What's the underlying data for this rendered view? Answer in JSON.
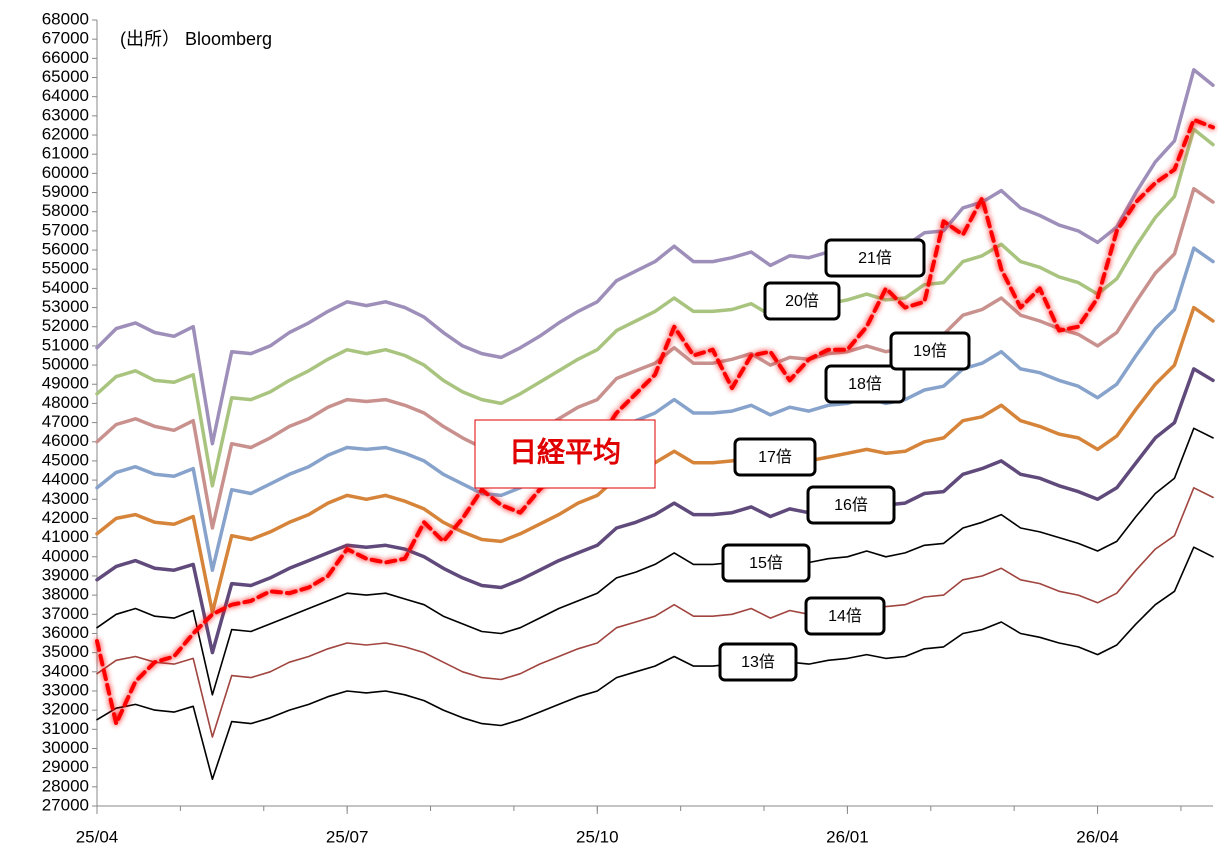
{
  "chart_data": {
    "type": "line",
    "source": "(出所） Bloomberg",
    "categories": [
      "25/04",
      null,
      null,
      null,
      null,
      null,
      null,
      null,
      null,
      null,
      null,
      null,
      null,
      "25/07",
      null,
      null,
      null,
      null,
      null,
      null,
      null,
      null,
      null,
      null,
      null,
      null,
      "25/10",
      null,
      null,
      null,
      null,
      null,
      null,
      null,
      null,
      null,
      null,
      null,
      null,
      "26/01",
      null,
      null,
      null,
      null,
      null,
      null,
      null,
      null,
      null,
      null,
      null,
      null,
      "26/04",
      null,
      null,
      null,
      null,
      null,
      null
    ],
    "ylim": [
      27000,
      68000
    ],
    "yticks": [
      27000,
      28000,
      29000,
      30000,
      31000,
      32000,
      33000,
      34000,
      35000,
      36000,
      37000,
      38000,
      39000,
      40000,
      41000,
      42000,
      43000,
      44000,
      45000,
      46000,
      47000,
      48000,
      49000,
      50000,
      51000,
      52000,
      53000,
      54000,
      55000,
      56000,
      57000,
      58000,
      59000,
      60000,
      61000,
      62000,
      63000,
      64000,
      65000,
      66000,
      67000,
      68000
    ],
    "series": [
      {
        "name": "13倍",
        "color": "#000000",
        "values": [
          31500,
          32100,
          32300,
          32000,
          31900,
          32200,
          28400,
          31400,
          31300,
          31600,
          32000,
          32300,
          32700,
          33000,
          32900,
          33000,
          32800,
          32500,
          32000,
          31600,
          31300,
          31200,
          31500,
          31900,
          32300,
          32700,
          33000,
          33700,
          34000,
          34300,
          34800,
          34300,
          34300,
          34400,
          34600,
          34200,
          34500,
          34400,
          34600,
          34700,
          34900,
          34700,
          34800,
          35200,
          35300,
          36000,
          36200,
          36600,
          36000,
          35800,
          35500,
          35300,
          34900,
          35400,
          36500,
          37500,
          38200,
          40500,
          40000
        ]
      },
      {
        "name": "14倍",
        "color": "#a0453f",
        "values": [
          33900,
          34600,
          34800,
          34500,
          34400,
          34700,
          30600,
          33800,
          33700,
          34000,
          34500,
          34800,
          35200,
          35500,
          35400,
          35500,
          35300,
          35000,
          34500,
          34000,
          33700,
          33600,
          33900,
          34400,
          34800,
          35200,
          35500,
          36300,
          36600,
          36900,
          37500,
          36900,
          36900,
          37000,
          37300,
          36800,
          37200,
          37000,
          37300,
          37400,
          37600,
          37400,
          37500,
          37900,
          38000,
          38800,
          39000,
          39400,
          38800,
          38600,
          38200,
          38000,
          37600,
          38100,
          39300,
          40400,
          41100,
          43600,
          43100
        ]
      },
      {
        "name": "15倍",
        "color": "#000000",
        "values": [
          36300,
          37000,
          37300,
          36900,
          36800,
          37200,
          32800,
          36200,
          36100,
          36500,
          36900,
          37300,
          37700,
          38100,
          38000,
          38100,
          37800,
          37500,
          36900,
          36500,
          36100,
          36000,
          36300,
          36800,
          37300,
          37700,
          38100,
          38900,
          39200,
          39600,
          40200,
          39600,
          39600,
          39700,
          39900,
          39500,
          39800,
          39700,
          39900,
          40000,
          40300,
          40000,
          40200,
          40600,
          40700,
          41500,
          41800,
          42200,
          41500,
          41300,
          41000,
          40700,
          40300,
          40800,
          42100,
          43300,
          44100,
          46700,
          46200
        ]
      },
      {
        "name": "16倍",
        "color": "#604a7b",
        "values": [
          38800,
          39500,
          39800,
          39400,
          39300,
          39600,
          35000,
          38600,
          38500,
          38900,
          39400,
          39800,
          40200,
          40600,
          40500,
          40600,
          40400,
          40000,
          39400,
          38900,
          38500,
          38400,
          38800,
          39300,
          39800,
          40200,
          40600,
          41500,
          41800,
          42200,
          42800,
          42200,
          42200,
          42300,
          42600,
          42100,
          42500,
          42300,
          42600,
          42700,
          43000,
          42700,
          42800,
          43300,
          43400,
          44300,
          44600,
          45000,
          44300,
          44100,
          43700,
          43400,
          43000,
          43600,
          44900,
          46200,
          47000,
          49800,
          49200
        ]
      },
      {
        "name": "17倍",
        "color": "#d6843a",
        "values": [
          41200,
          42000,
          42200,
          41800,
          41700,
          42100,
          37100,
          41100,
          40900,
          41300,
          41800,
          42200,
          42800,
          43200,
          43000,
          43200,
          42900,
          42500,
          41800,
          41300,
          40900,
          40800,
          41200,
          41700,
          42200,
          42800,
          43200,
          44100,
          44500,
          44900,
          45500,
          44900,
          44900,
          45000,
          45200,
          44700,
          45100,
          45000,
          45200,
          45400,
          45600,
          45400,
          45500,
          46000,
          46200,
          47100,
          47300,
          47900,
          47100,
          46800,
          46400,
          46200,
          45600,
          46300,
          47700,
          49000,
          50000,
          53000,
          52300
        ]
      },
      {
        "name": "18倍",
        "color": "#87a3cc",
        "values": [
          43600,
          44400,
          44700,
          44300,
          44200,
          44600,
          39300,
          43500,
          43300,
          43800,
          44300,
          44700,
          45300,
          45700,
          45600,
          45700,
          45400,
          45000,
          44300,
          43800,
          43300,
          43200,
          43600,
          44200,
          44700,
          45300,
          45700,
          46700,
          47100,
          47500,
          48200,
          47500,
          47500,
          47600,
          47900,
          47400,
          47800,
          47600,
          47900,
          48000,
          48300,
          48000,
          48200,
          48700,
          48900,
          49800,
          50100,
          50700,
          49800,
          49600,
          49200,
          48900,
          48300,
          49000,
          50500,
          51900,
          52900,
          56100,
          55400
        ]
      },
      {
        "name": "19倍",
        "color": "#c9918e",
        "values": [
          46000,
          46900,
          47200,
          46800,
          46600,
          47100,
          41500,
          45900,
          45700,
          46200,
          46800,
          47200,
          47800,
          48200,
          48100,
          48200,
          47900,
          47500,
          46800,
          46200,
          45700,
          45600,
          46000,
          46600,
          47200,
          47800,
          48200,
          49300,
          49700,
          50100,
          50900,
          50100,
          50100,
          50300,
          50600,
          50000,
          50400,
          50300,
          50600,
          50700,
          51000,
          50700,
          50900,
          51400,
          51600,
          52600,
          52900,
          53500,
          52600,
          52300,
          51900,
          51600,
          51000,
          51700,
          53300,
          54800,
          55800,
          59200,
          58500
        ]
      },
      {
        "name": "20倍",
        "color": "#a9c47f",
        "values": [
          48500,
          49400,
          49700,
          49200,
          49100,
          49500,
          43700,
          48300,
          48200,
          48600,
          49200,
          49700,
          50300,
          50800,
          50600,
          50800,
          50500,
          50000,
          49200,
          48600,
          48200,
          48000,
          48500,
          49100,
          49700,
          50300,
          50800,
          51800,
          52300,
          52800,
          53500,
          52800,
          52800,
          52900,
          53200,
          52600,
          53100,
          52900,
          53200,
          53400,
          53700,
          53400,
          53500,
          54200,
          54300,
          55400,
          55700,
          56300,
          55400,
          55100,
          54600,
          54300,
          53700,
          54500,
          56200,
          57700,
          58800,
          62300,
          61500
        ]
      },
      {
        "name": "21倍",
        "color": "#9e8fba",
        "values": [
          50900,
          51900,
          52200,
          51700,
          51500,
          52000,
          45900,
          50700,
          50600,
          51000,
          51700,
          52200,
          52800,
          53300,
          53100,
          53300,
          53000,
          52500,
          51700,
          51000,
          50600,
          50400,
          50900,
          51500,
          52200,
          52800,
          53300,
          54400,
          54900,
          55400,
          56200,
          55400,
          55400,
          55600,
          55900,
          55200,
          55700,
          55600,
          55900,
          56100,
          56400,
          56100,
          56200,
          56900,
          57000,
          58200,
          58500,
          59100,
          58200,
          57800,
          57300,
          57000,
          56400,
          57200,
          59000,
          60600,
          61700,
          65400,
          64600
        ]
      },
      {
        "name": "日経平均",
        "color": "#ff0000",
        "values": [
          35600,
          31300,
          33500,
          34500,
          34800,
          36000,
          37000,
          37500,
          37700,
          38200,
          38100,
          38400,
          39000,
          40400,
          39900,
          39700,
          39900,
          41800,
          40800,
          42000,
          43500,
          42700,
          42300,
          43500,
          44500,
          45500,
          46000,
          47500,
          48500,
          49500,
          52000,
          50500,
          50800,
          48800,
          50500,
          50700,
          49200,
          50300,
          50800,
          50800,
          52000,
          54000,
          53000,
          53300,
          57500,
          56800,
          58700,
          55000,
          53000,
          54000,
          51800,
          52000,
          53500,
          57000,
          58500,
          59500,
          60200,
          62800,
          62400
        ]
      }
    ]
  }
}
